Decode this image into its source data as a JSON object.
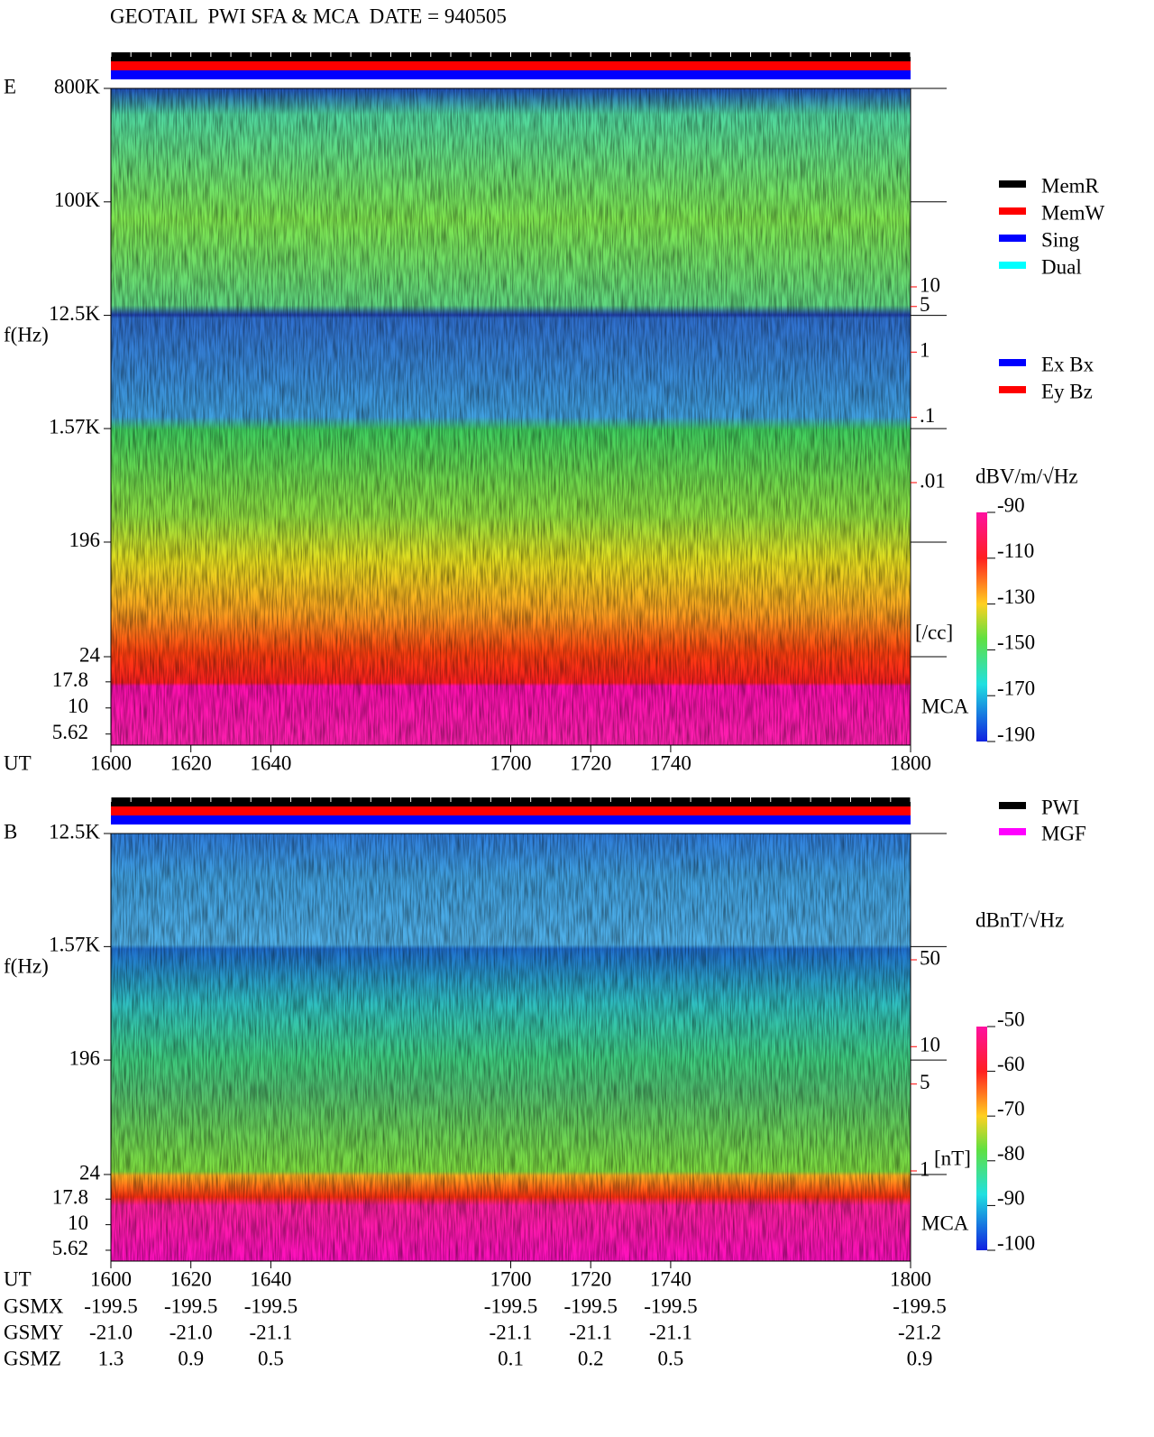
{
  "title": "GEOTAIL  PWI SFA & MCA  DATE = 940505",
  "chart_data": [
    {
      "type": "spectrogram",
      "panel_label": "E",
      "y_label": "f(Hz)",
      "x_label": "UT",
      "xlim": [
        1600,
        1800
      ],
      "xticks": [
        1600,
        1620,
        1640,
        1700,
        1720,
        1740,
        1800
      ],
      "yscale": "log",
      "ylim": [
        24,
        800000
      ],
      "yticks": [
        {
          "value": 800000,
          "label": "800K"
        },
        {
          "value": 100000,
          "label": "100K"
        },
        {
          "value": 12500,
          "label": "12.5K"
        },
        {
          "value": 1570,
          "label": "1.57K"
        },
        196,
        24
      ],
      "mca_label": "MCA",
      "mca_ylim": [
        4.4,
        31
      ],
      "mca_yticks": [
        17.8,
        10,
        5.62
      ],
      "y2lim": [
        0.01,
        10
      ],
      "y2ticks": [
        10,
        5,
        1,
        {
          "value": 0.1,
          "label": ".1"
        },
        {
          "value": 0.01,
          "label": ".01"
        }
      ],
      "y2_label": "[/cc]",
      "y2_color": "#ff0000",
      "colorbar": {
        "label": "dBV/m/√Hz",
        "clim": [
          -190,
          -90
        ],
        "ticks": [
          -90,
          -110,
          -130,
          -150,
          -170,
          -190
        ]
      },
      "legends": [
        [
          {
            "name": "MemR",
            "color": "#000000"
          },
          {
            "name": "MemW",
            "color": "#ff0000"
          },
          {
            "name": "Sing",
            "color": "#0000ff"
          },
          {
            "name": "Dual",
            "color": "#00ffff"
          }
        ],
        [
          {
            "name": "Ex Bx",
            "color": "#0000ff"
          },
          {
            "name": "Ey Bz",
            "color": "#ff0000"
          }
        ]
      ]
    },
    {
      "type": "spectrogram",
      "panel_label": "B",
      "y_label": "f(Hz)",
      "x_label": "UT",
      "xlim": [
        1600,
        1800
      ],
      "xticks": [
        1600,
        1620,
        1640,
        1700,
        1720,
        1740,
        1800
      ],
      "yscale": "log",
      "ylim": [
        24,
        12500
      ],
      "yticks": [
        {
          "value": 12500,
          "label": "12.5K"
        },
        {
          "value": 1570,
          "label": "1.57K"
        },
        196,
        24
      ],
      "mca_label": "MCA",
      "mca_ylim": [
        4.4,
        31
      ],
      "mca_yticks": [
        17.8,
        10,
        5.62
      ],
      "y2lim": [
        1,
        50
      ],
      "y2ticks": [
        50,
        10,
        5,
        1
      ],
      "y2_label": "[nT]",
      "y2_color": "#ff0000",
      "colorbar": {
        "label": "dBnT/√Hz",
        "clim": [
          -100,
          -50
        ],
        "ticks": [
          -50,
          -60,
          -70,
          -80,
          -90,
          -100
        ]
      },
      "legends": [
        [
          {
            "name": "PWI",
            "color": "#000000"
          },
          {
            "name": "MGF",
            "color": "#ff00ff"
          }
        ]
      ]
    }
  ],
  "orbit": {
    "rows": [
      {
        "label": "GSMX",
        "values": [
          "-199.5",
          "-199.5",
          "-199.5",
          "-199.5",
          "-199.5",
          "-199.5",
          "-199.5"
        ]
      },
      {
        "label": "GSMY",
        "values": [
          "-21.0",
          "-21.0",
          "-21.1",
          "-21.1",
          "-21.1",
          "-21.1",
          "-21.2"
        ]
      },
      {
        "label": "GSMZ",
        "values": [
          "1.3",
          "0.9",
          "0.5",
          "0.1",
          "0.2",
          "0.5",
          "0.9"
        ]
      }
    ]
  }
}
